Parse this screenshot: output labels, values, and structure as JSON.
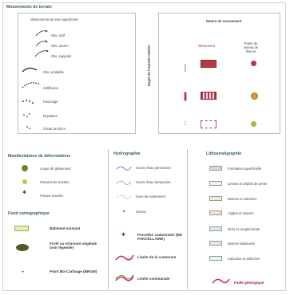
{
  "movements": {
    "title": "Mouvements de terrain",
    "subtitle": "Glissements de sols superficiels",
    "items": [
      "Glis. actif",
      "Glis. ancien",
      "Glis. supposé",
      "Glis. probable",
      "Solifluxion",
      "Fauchage",
      "Reptation",
      "Chute de blocs",
      "Éboulis"
    ]
  },
  "activity": {
    "title": "Nature du mouvement",
    "col1": "Glissement",
    "col2": "Partie de niveau de fissure",
    "vertical_label": "Degré de l'activité relative",
    "rows": [
      "Actif",
      "Ancien",
      "Supposé"
    ]
  },
  "deformation": {
    "title": "Manifestations de déformations",
    "items": [
      "Loupe de glissement",
      "Fissures de traction",
      "Fissure ouverte"
    ]
  },
  "hydro": {
    "title": "Hydrographie",
    "items": [
      "Cours d'eau permanent",
      "Cours d'eau temporaire",
      "Zone de suintement",
      "Source"
    ]
  },
  "lithology": {
    "title": "Lithostratigraphie",
    "items": [
      "Formation superficielle",
      "Limons et dépôts de pente",
      "Marnes et calcaires",
      "Argiles et marnes",
      "Grès et conglomérats",
      "Marnes sableuses",
      "Calcaires et dolomies"
    ],
    "fault": "Faille géologique"
  },
  "background": {
    "title": "Fond cartographique",
    "items": [
      "Bâtiment existant",
      "Forêt ou structure végétale (voir légende)",
      "Point BD-Carthage (BRGM)"
    ],
    "aux": [
      "Parcelles cadastrales (BD PARCELLAIRE)",
      "Limite de la commune",
      "Limite communale"
    ]
  },
  "colors": {
    "glissement": "#b23a4a",
    "orange": "#d99a3c",
    "green_dot": "#a8b838",
    "water": "#5a78c8",
    "fault": "#c8325a",
    "olive": "#5c6a2a"
  }
}
